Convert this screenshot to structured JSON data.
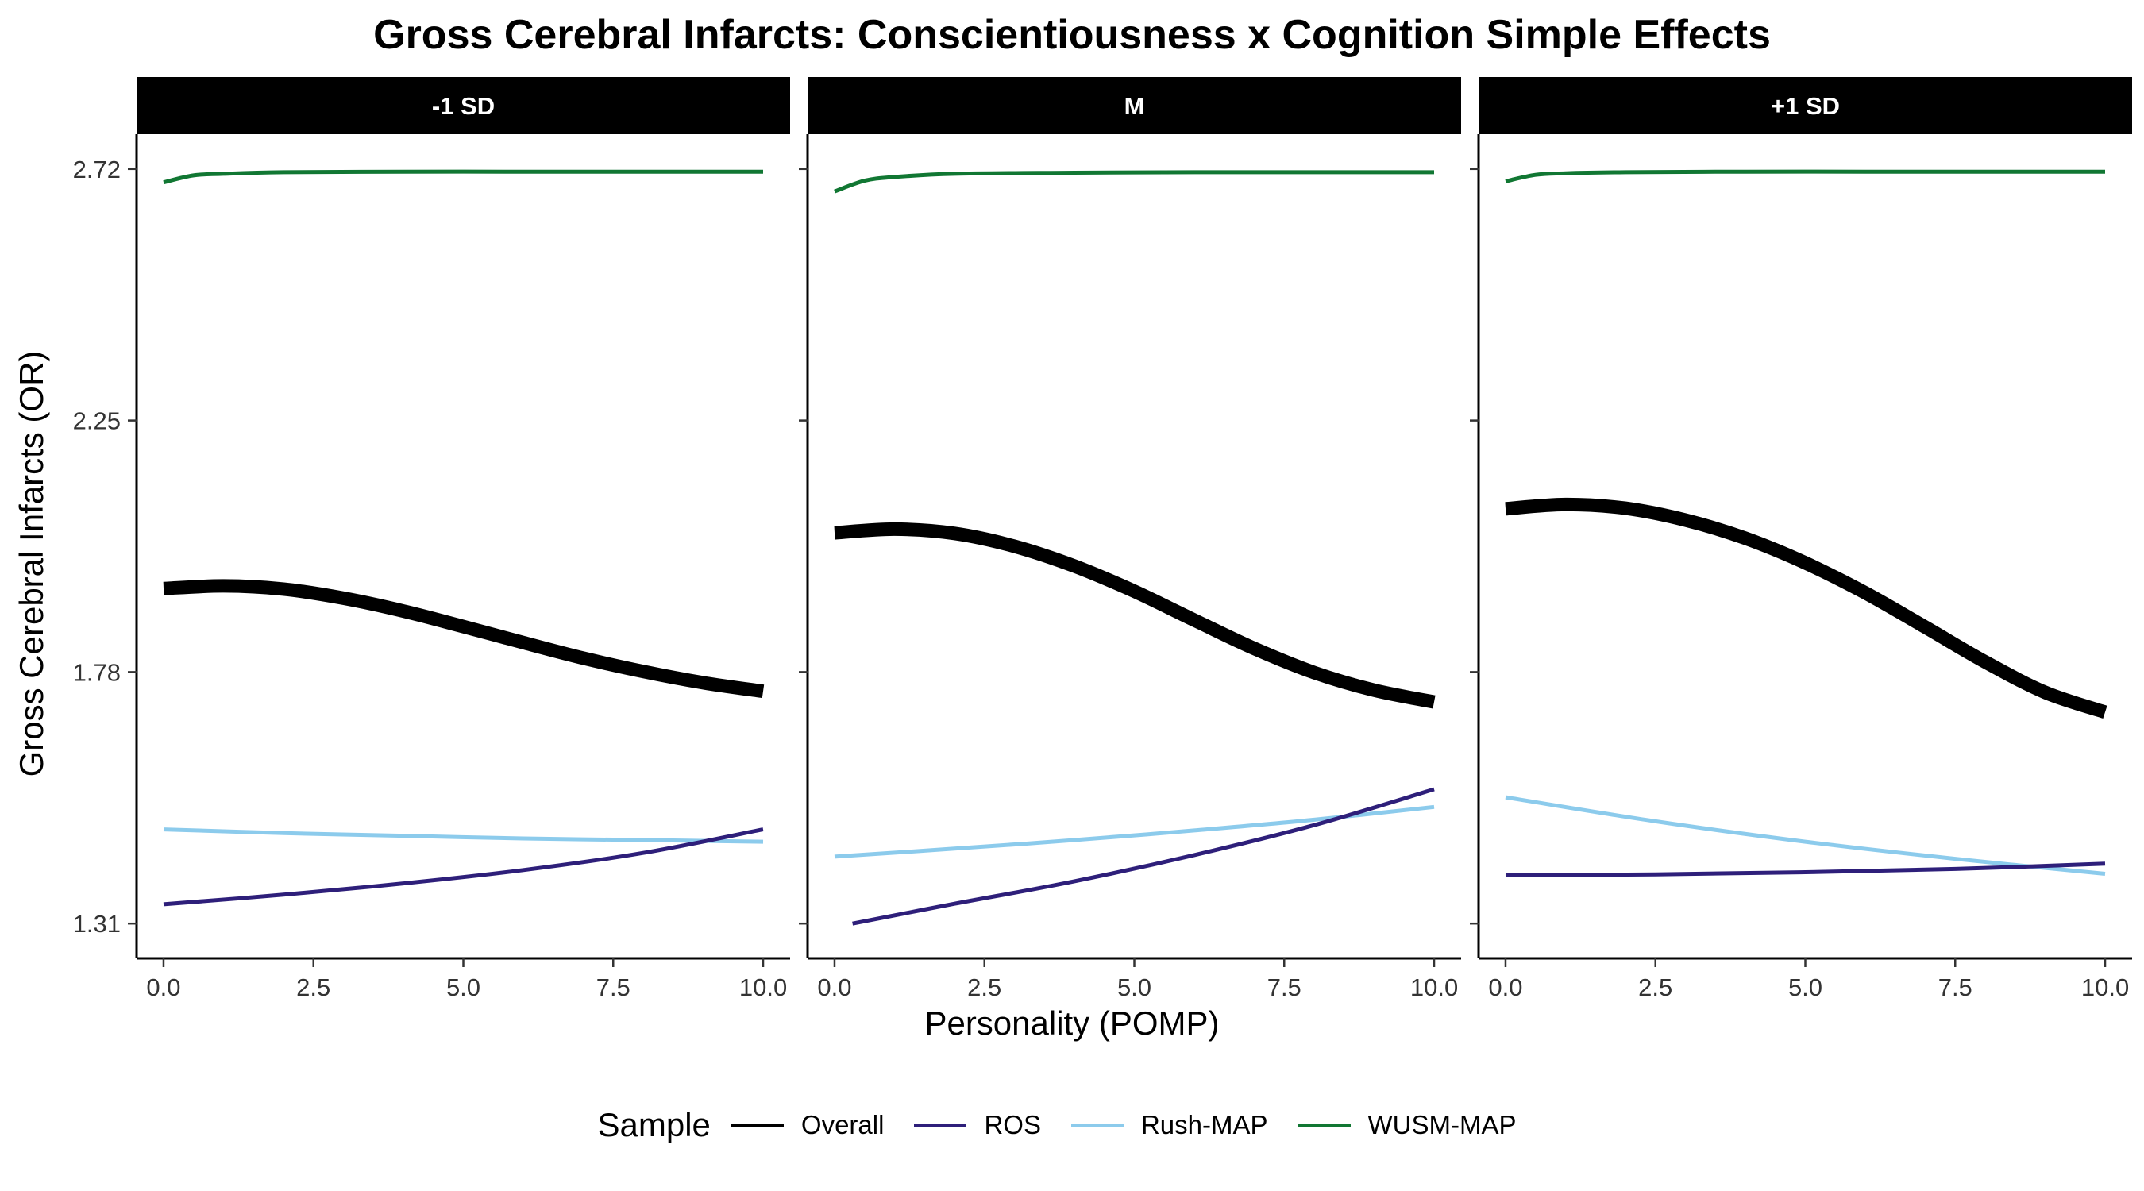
{
  "chart_data": {
    "type": "line",
    "title": "Gross Cerebral Infarcts: Conscientiousness x Cognition Simple Effects",
    "xlabel": "Personality (POMP)",
    "ylabel": "Gross Cerebral Infarcts (OR)",
    "xlim": [
      -0.45,
      10.45
    ],
    "ylim": [
      1.245,
      2.785
    ],
    "x_ticks": [
      "0.0",
      "2.5",
      "5.0",
      "7.5",
      "10.0"
    ],
    "y_ticks": [
      "1.31",
      "1.78",
      "2.25",
      "2.72"
    ],
    "legend": {
      "title": "Sample",
      "position": "bottom",
      "items": [
        "Overall",
        "ROS",
        "Rush-MAP",
        "WUSM-MAP"
      ]
    },
    "colors": {
      "Overall": "#000000",
      "ROS": "#2e1f7a",
      "Rush-MAP": "#8ccbec",
      "WUSM-MAP": "#117733"
    },
    "grid": false,
    "facets": [
      {
        "label": "-1 SD",
        "series": [
          {
            "name": "Overall",
            "x": [
              0,
              1,
              2,
              3,
              4,
              5,
              6,
              7,
              8,
              9,
              10
            ],
            "y": [
              1.936,
              1.941,
              1.935,
              1.918,
              1.894,
              1.865,
              1.835,
              1.806,
              1.781,
              1.76,
              1.744
            ]
          },
          {
            "name": "ROS",
            "x": [
              0,
              2,
              4,
              6,
              8,
              10
            ],
            "y": [
              1.346,
              1.364,
              1.385,
              1.41,
              1.442,
              1.486
            ]
          },
          {
            "name": "Rush-MAP",
            "x": [
              0,
              2,
              4,
              6,
              8,
              10
            ],
            "y": [
              1.486,
              1.479,
              1.474,
              1.469,
              1.466,
              1.463
            ]
          },
          {
            "name": "WUSM-MAP",
            "x": [
              0,
              0.5,
              1,
              2,
              4,
              6,
              8,
              10
            ],
            "y": [
              2.695,
              2.708,
              2.711,
              2.714,
              2.715,
              2.715,
              2.715,
              2.715
            ]
          }
        ]
      },
      {
        "label": "M",
        "series": [
          {
            "name": "Overall",
            "x": [
              0,
              1,
              2,
              3,
              4,
              5,
              6,
              7,
              8,
              9,
              10
            ],
            "y": [
              2.04,
              2.047,
              2.039,
              2.015,
              1.978,
              1.931,
              1.877,
              1.824,
              1.779,
              1.746,
              1.724
            ]
          },
          {
            "name": "ROS",
            "x": [
              0.3,
              2,
              4,
              6,
              8,
              10
            ],
            "y": [
              1.31,
              1.347,
              1.389,
              1.438,
              1.494,
              1.561
            ]
          },
          {
            "name": "Rush-MAP",
            "x": [
              0,
              2,
              4,
              6,
              8,
              10
            ],
            "y": [
              1.435,
              1.45,
              1.466,
              1.484,
              1.504,
              1.528
            ]
          },
          {
            "name": "WUSM-MAP",
            "x": [
              0,
              0.5,
              1,
              2,
              4,
              6,
              8,
              10
            ],
            "y": [
              2.678,
              2.698,
              2.705,
              2.711,
              2.713,
              2.714,
              2.714,
              2.714
            ]
          }
        ]
      },
      {
        "label": "+1 SD",
        "series": [
          {
            "name": "Overall",
            "x": [
              0,
              1,
              2,
              3,
              4,
              5,
              6,
              7,
              8,
              9,
              10
            ],
            "y": [
              2.085,
              2.093,
              2.086,
              2.064,
              2.03,
              1.984,
              1.928,
              1.864,
              1.799,
              1.742,
              1.705
            ]
          },
          {
            "name": "ROS",
            "x": [
              0,
              2.5,
              5,
              7.5,
              10
            ],
            "y": [
              1.4,
              1.402,
              1.406,
              1.412,
              1.422
            ]
          },
          {
            "name": "Rush-MAP",
            "x": [
              0,
              2.5,
              5,
              7.5,
              10
            ],
            "y": [
              1.546,
              1.501,
              1.463,
              1.431,
              1.403
            ]
          },
          {
            "name": "WUSM-MAP",
            "x": [
              0,
              0.5,
              1,
              2,
              4,
              6,
              8,
              10
            ],
            "y": [
              2.697,
              2.709,
              2.712,
              2.714,
              2.715,
              2.715,
              2.715,
              2.715
            ]
          }
        ]
      }
    ]
  }
}
